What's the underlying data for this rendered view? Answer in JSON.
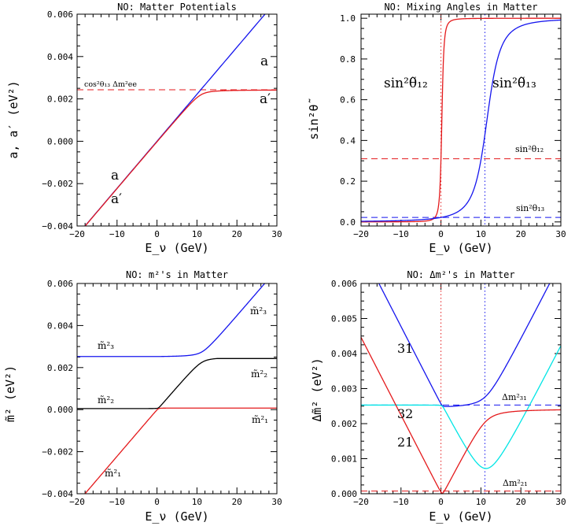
{
  "colors": {
    "red": "#e41a1c",
    "blue": "#1515ee",
    "black": "#000000",
    "cyan": "#00e5e5"
  },
  "chart_data": [
    {
      "type": "line",
      "title": "NO: Matter Potentials",
      "xlabel": "E_ν (GeV)",
      "ylabel": "a, a′ (eV²)",
      "xlim": [
        -20,
        30
      ],
      "ylim": [
        -0.004,
        0.006
      ],
      "xticks": [
        "−20",
        "−10",
        "0",
        "10",
        "20",
        "30"
      ],
      "yticks": [
        "−0.004",
        "−0.002",
        "0.000",
        "0.002",
        "0.004",
        "0.006"
      ],
      "reference_line": {
        "label": "cos²θ₁₃ Δm²ee",
        "y": 0.00243
      },
      "series": [
        {
          "name": "a",
          "color": "blue",
          "slope_per_GeV": 0.000222
        },
        {
          "name": "a′",
          "color": "red",
          "asymptote": 0.00243
        }
      ],
      "labels": [
        {
          "text": "a",
          "color": "blue"
        },
        {
          "text": "a′",
          "color": "red"
        },
        {
          "text": "a",
          "color": "blue"
        },
        {
          "text": "a′",
          "color": "red"
        }
      ]
    },
    {
      "type": "line",
      "title": "NO: Mixing Angles in Matter",
      "xlabel": "E_ν (GeV)",
      "ylabel": "sin²θ̃",
      "xlim": [
        -20,
        30
      ],
      "ylim": [
        -0.02,
        1.02
      ],
      "xticks": [
        "−20",
        "−10",
        "0",
        "10",
        "20",
        "30"
      ],
      "yticks": [
        "0.0",
        "0.2",
        "0.4",
        "0.6",
        "0.8",
        "1.0"
      ],
      "reference_lines": [
        {
          "label": "sin²θ₁₂",
          "y": 0.31,
          "color": "red"
        },
        {
          "label": "sin²θ₁₃",
          "y": 0.022,
          "color": "blue"
        }
      ],
      "vertical_lines": [
        {
          "x": 0,
          "color": "red"
        },
        {
          "x": 11,
          "color": "blue"
        }
      ],
      "series": [
        {
          "name": "sin²θ̃₁₂",
          "color": "red",
          "resonance_GeV": 0
        },
        {
          "name": "sin²θ̃₁₃",
          "color": "blue",
          "resonance_GeV": 11
        }
      ]
    },
    {
      "type": "line",
      "title": "NO:  m²'s in Matter",
      "xlabel": "E_ν (GeV)",
      "ylabel": "m̃² (eV²)",
      "xlim": [
        -20,
        30
      ],
      "ylim": [
        -0.004,
        0.006
      ],
      "xticks": [
        "−20",
        "−10",
        "0",
        "10",
        "20",
        "30"
      ],
      "yticks": [
        "−0.004",
        "−0.002",
        "0.000",
        "0.002",
        "0.004",
        "0.006"
      ],
      "series": [
        {
          "name": "m̃²₃",
          "color": "blue",
          "start": 0.0025
        },
        {
          "name": "m̃²₂",
          "color": "black",
          "start": 7.45e-05,
          "end": 0.00243
        },
        {
          "name": "m̃²₁",
          "color": "red",
          "end": 7.45e-05
        }
      ],
      "labels": [
        {
          "text": "m̃²₃",
          "color": "blue"
        },
        {
          "text": "m̃²₃",
          "color": "blue"
        },
        {
          "text": "m̃²₂",
          "color": "black"
        },
        {
          "text": "m̃²₂",
          "color": "black"
        },
        {
          "text": "m̃²₁",
          "color": "red"
        },
        {
          "text": "m̃²₁",
          "color": "red"
        }
      ]
    },
    {
      "type": "line",
      "title": "NO:  Δm²'s in Matter",
      "xlabel": "E_ν (GeV)",
      "ylabel": "Δm̃² (eV²)",
      "xlim": [
        -20,
        30
      ],
      "ylim": [
        0,
        0.006
      ],
      "xticks": [
        "−20",
        "−10",
        "0",
        "10",
        "20",
        "30"
      ],
      "yticks": [
        "0.000",
        "0.001",
        "0.002",
        "0.003",
        "0.004",
        "0.005",
        "0.006"
      ],
      "reference_lines": [
        {
          "label": "Δm²₃₁",
          "y": 0.00253,
          "color": "blue"
        },
        {
          "label": "Δm²₂₁",
          "y": 7.45e-05,
          "color": "red"
        }
      ],
      "vertical_lines": [
        {
          "x": 0,
          "color": "red"
        },
        {
          "x": 11,
          "color": "blue"
        }
      ],
      "series": [
        {
          "name": "31",
          "color": "blue"
        },
        {
          "name": "32",
          "color": "cyan",
          "minimum": 0.00072
        },
        {
          "name": "21",
          "color": "red"
        }
      ]
    }
  ]
}
